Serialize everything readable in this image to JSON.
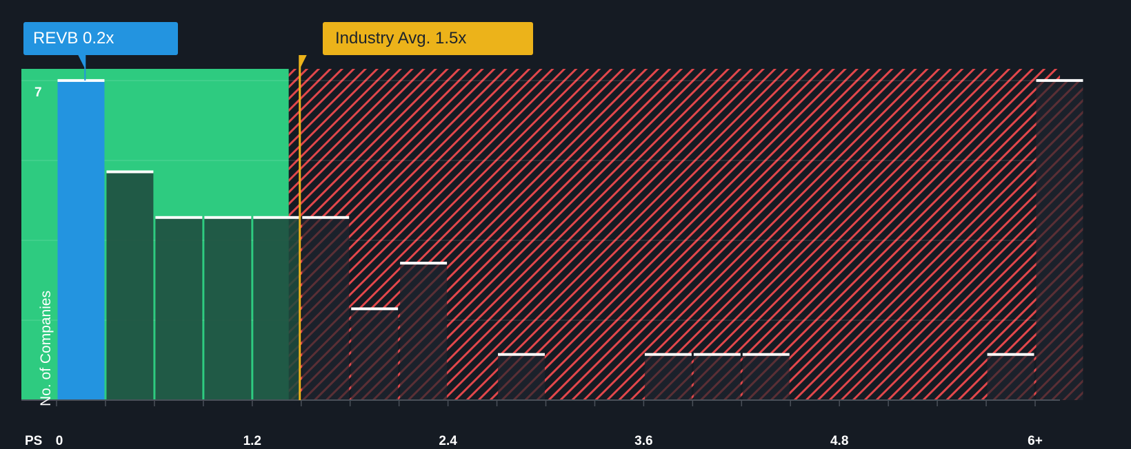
{
  "chart_data": {
    "type": "bar",
    "title": "",
    "xlabel": "PS",
    "ylabel": "No. of Companies",
    "ylim": [
      0,
      7
    ],
    "y_tick_labels": [
      "7"
    ],
    "x_tick_labels": [
      "0",
      "1.2",
      "2.4",
      "3.6",
      "4.8",
      "6+"
    ],
    "bin_width": 0.3,
    "categories": [
      "0-0.3",
      "0.3-0.6",
      "0.6-0.9",
      "0.9-1.2",
      "1.2-1.5",
      "1.5-1.8",
      "1.8-2.1",
      "2.1-2.4",
      "2.4-2.7",
      "2.7-3.0",
      "3.0-3.3",
      "3.3-3.6",
      "3.6-3.9",
      "3.9-4.2",
      "4.2-4.5",
      "4.5-4.8",
      "4.8-5.1",
      "5.1-5.4",
      "5.4-5.7",
      "5.7-6.0",
      "6+"
    ],
    "values": [
      7,
      5,
      4,
      4,
      4,
      4,
      2,
      3,
      0,
      1,
      0,
      0,
      1,
      1,
      1,
      0,
      0,
      0,
      0,
      1,
      7
    ],
    "highlight": {
      "label": "REVB 0.2x",
      "value": 0.2,
      "bin_index": 0
    },
    "reference_line": {
      "label": "Industry Avg. 1.5x",
      "value": 1.5
    },
    "zones": [
      {
        "name": "below-average",
        "from": 0,
        "to": 1.5,
        "color": "#2ecb80"
      },
      {
        "name": "above-average",
        "from": 1.5,
        "to": 6.15,
        "color": "#e2474b",
        "pattern": "diagonal-hatch"
      }
    ],
    "grid": true,
    "legend": "none"
  },
  "callouts": {
    "company": "REVB 0.2x",
    "industry": "Industry Avg. 1.5x"
  },
  "axis": {
    "x_title": "PS",
    "y_title": "No. of Companies",
    "y_max_label": "7",
    "x_ticks": [
      {
        "label": "0",
        "value": 0
      },
      {
        "label": "1.2",
        "value": 1.2
      },
      {
        "label": "2.4",
        "value": 2.4
      },
      {
        "label": "3.6",
        "value": 3.6
      },
      {
        "label": "4.8",
        "value": 4.8
      },
      {
        "label": "6+",
        "value": 6.0
      }
    ]
  },
  "colors": {
    "background": "#151b23",
    "green_zone": "#2ecb80",
    "company_bar": "#2394e0",
    "green_bar": "#1f4a3d",
    "hatch": "#e2474b",
    "industry": "#ecb31a",
    "bar_top": "#ffffff"
  }
}
